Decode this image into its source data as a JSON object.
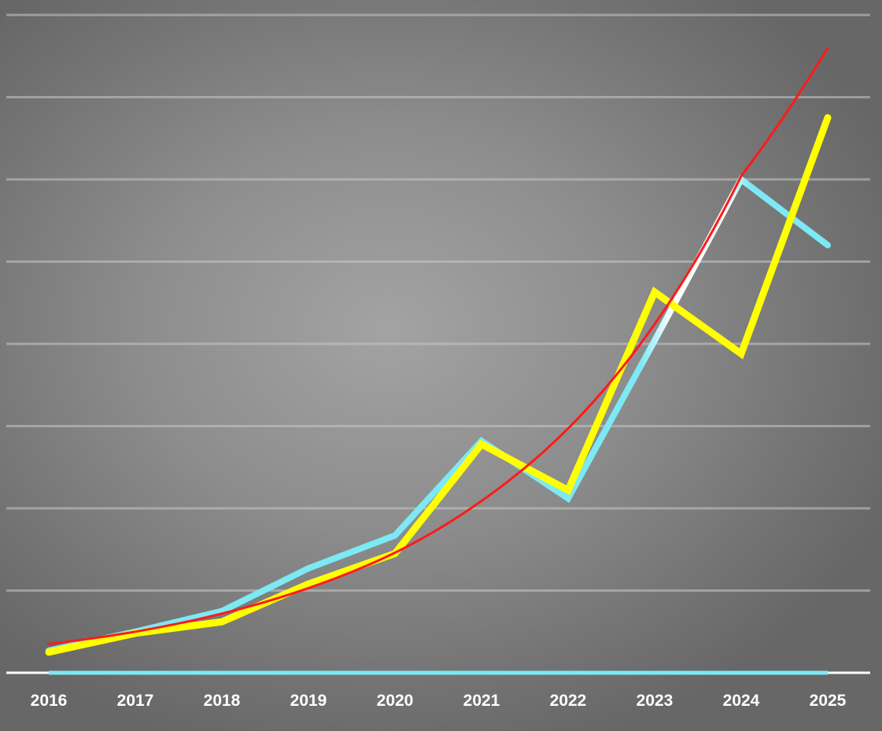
{
  "chart_data": {
    "type": "line",
    "title": "",
    "xlabel": "",
    "ylabel": "",
    "categories": [
      "2016",
      "2017",
      "2018",
      "2019",
      "2020",
      "2021",
      "2022",
      "2023",
      "2024",
      "2025"
    ],
    "ylim": [
      0,
      8
    ],
    "gridlines_y": [
      1,
      2,
      3,
      4,
      5,
      6,
      7,
      8
    ],
    "grid": true,
    "legend": "none",
    "series": [
      {
        "values": [
          0.27,
          0.5,
          0.75,
          1.27,
          1.67,
          2.82,
          2.12,
          4.04,
          6.0,
          5.2
        ],
        "color": "#7ce9f4",
        "highlight_color": "#ffffff",
        "stroke": 8
      },
      {
        "values": [
          0.25,
          0.48,
          0.62,
          1.08,
          1.45,
          2.78,
          2.22,
          4.63,
          3.88,
          6.75
        ],
        "color": "#ffff00",
        "stroke": 9
      }
    ],
    "trendline": {
      "type": "exponential",
      "values": [
        0.35,
        0.5,
        0.72,
        1.03,
        1.46,
        2.09,
        2.97,
        4.24,
        6.04,
        7.6
      ],
      "color": "#ff1a1a",
      "stroke": 3
    },
    "baseline": {
      "value": 0,
      "color": "#ffffff",
      "highlight_color": "#7ce9f4"
    }
  }
}
